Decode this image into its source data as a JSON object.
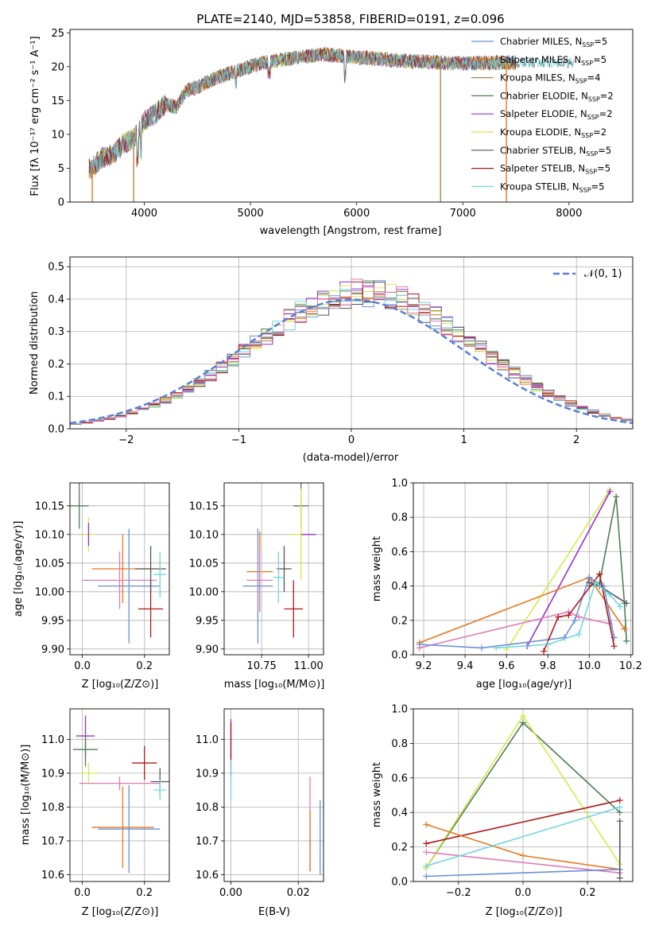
{
  "chart_data": [
    {
      "type": "line",
      "title": "PLATE=2140, MJD=53858, FIBERID=0191, z=0.096",
      "xlabel": "wavelength [Angstrom, rest frame]",
      "ylabel": "Flux [fλ 10⁻¹⁷ erg cm⁻² s⁻¹ A⁻¹]",
      "xlim": [
        3300,
        8600
      ],
      "ylim": [
        0,
        25.5
      ],
      "xticks": [
        "4000",
        "5000",
        "6000",
        "7000",
        "8000"
      ],
      "yticks": [
        "0",
        "5",
        "10",
        "15",
        "20",
        "25"
      ],
      "legend_placement": "right",
      "series": [
        {
          "name": "Chabrier MILES, N",
          "sub": "SSP",
          "suffix": "=5",
          "color": "#6a8fd8"
        },
        {
          "name": "Salpeter MILES, N",
          "sub": "SSP",
          "suffix": "=5",
          "color": "#e8761f"
        },
        {
          "name": "Kroupa MILES, N",
          "sub": "SSP",
          "suffix": "=4",
          "color": "#a8894a"
        },
        {
          "name": "Chabrier ELODIE, N",
          "sub": "SSP",
          "suffix": "=2",
          "color": "#4f7f55"
        },
        {
          "name": "Salpeter ELODIE, N",
          "sub": "SSP",
          "suffix": "=2",
          "color": "#9b30c8"
        },
        {
          "name": "Kroupa ELODIE, N",
          "sub": "SSP",
          "suffix": "=2",
          "color": "#d7e84a"
        },
        {
          "name": "Chabrier STELIB, N",
          "sub": "SSP",
          "suffix": "=5",
          "color": "#555555"
        },
        {
          "name": "Salpeter STELIB, N",
          "sub": "SSP",
          "suffix": "=5",
          "color": "#b01818"
        },
        {
          "name": "Kroupa STELIB, N",
          "sub": "SSP",
          "suffix": "=5",
          "color": "#6fd6e0"
        }
      ],
      "continuum": {
        "x": [
          3500,
          3600,
          3700,
          3800,
          3900,
          4000,
          4100,
          4200,
          4300,
          4400,
          4500,
          4700,
          4900,
          5100,
          5300,
          5500,
          5700,
          5900,
          6100,
          6300,
          6500,
          6700,
          6900,
          7100,
          7300,
          7500
        ],
        "y": [
          5,
          6.5,
          7,
          8.5,
          9.5,
          12,
          13,
          14.5,
          14,
          16.5,
          17,
          18.5,
          19.5,
          20.5,
          21,
          21.5,
          21.8,
          21.5,
          21.3,
          21,
          20.8,
          20.7,
          20.5,
          20.5,
          20.6,
          20.6
        ]
      },
      "spikes": [
        {
          "x": 3510,
          "color": "#e8761f"
        },
        {
          "x": 3900,
          "color": "#a8894a"
        },
        {
          "x": 6790,
          "color": "#a8894a"
        },
        {
          "x": 7410,
          "color": "#e8761f"
        }
      ]
    },
    {
      "type": "histogram",
      "xlabel": "(data-model)/error",
      "ylabel": "Normed distribution",
      "xlim": [
        -2.5,
        2.5
      ],
      "ylim": [
        0,
        0.53
      ],
      "xticks": [
        "−2",
        "−1",
        "0",
        "1",
        "2"
      ],
      "yticks": [
        "0.0",
        "0.1",
        "0.2",
        "0.3",
        "0.4",
        "0.5"
      ],
      "legend": "𝒩(0, 1)",
      "legend_placement": "top-right",
      "gaussian": {
        "mean": 0,
        "sd": 1,
        "color": "#5b7fd6"
      },
      "bin_width": 0.1,
      "series_colors": [
        "#6a8fd8",
        "#e8761f",
        "#a8894a",
        "#4f7f55",
        "#9b30c8",
        "#d7e84a",
        "#555555",
        "#b01818",
        "#6fd6e0",
        "#e07ab8"
      ]
    },
    {
      "type": "scatter",
      "xlabel": "Z [log₁₀(Z/Z⊙)]",
      "ylabel": "age  [log₁₀(age/yr)]",
      "xlim": [
        -0.04,
        0.28
      ],
      "ylim": [
        9.89,
        10.19
      ],
      "xticks": [
        "0.0",
        "0.2"
      ],
      "yticks": [
        "9.90",
        "9.95",
        "10.00",
        "10.05",
        "10.10",
        "10.15"
      ],
      "points": [
        {
          "x": -0.01,
          "y": 10.15,
          "xe": 0.03,
          "ye": 0.04,
          "color": "#4f7f55"
        },
        {
          "x": 0.02,
          "y": 10.1,
          "xe": 0.02,
          "ye": 0.03,
          "color": "#d7e84a"
        },
        {
          "x": 0.02,
          "y": 10.1,
          "xe": 0.0,
          "ye": 0.02,
          "color": "#9b30c8"
        },
        {
          "x": 0.13,
          "y": 10.04,
          "xe": 0.1,
          "ye": 0.06,
          "color": "#e8761f"
        },
        {
          "x": 0.12,
          "y": 10.02,
          "xe": 0.12,
          "ye": 0.05,
          "color": "#e07ab8"
        },
        {
          "x": 0.15,
          "y": 10.01,
          "xe": 0.1,
          "ye": 0.1,
          "color": "#6a8fd8"
        },
        {
          "x": 0.22,
          "y": 9.97,
          "xe": 0.04,
          "ye": 0.05,
          "color": "#b01818"
        },
        {
          "x": 0.22,
          "y": 10.04,
          "xe": 0.05,
          "ye": 0.04,
          "color": "#555555"
        },
        {
          "x": 0.25,
          "y": 10.03,
          "xe": 0.02,
          "ye": 0.04,
          "color": "#6fd6e0"
        }
      ]
    },
    {
      "type": "scatter",
      "xlabel": "mass [log₁₀(M/M⊙)]",
      "ylabel": "",
      "xlim": [
        10.55,
        11.08
      ],
      "ylim": [
        9.89,
        10.19
      ],
      "xticks": [
        "10.75",
        "11.00"
      ],
      "yticks": [
        "9.90",
        "9.95",
        "10.00",
        "10.05",
        "10.10",
        "10.15"
      ],
      "points": [
        {
          "x": 10.96,
          "y": 10.15,
          "xe": 0.04,
          "ye": 0.04,
          "color": "#4f7f55"
        },
        {
          "x": 10.96,
          "y": 10.1,
          "xe": 0.06,
          "ye": 0.08,
          "color": "#d7e84a"
        },
        {
          "x": 11.0,
          "y": 10.1,
          "xe": 0.04,
          "ye": 0.0,
          "color": "#9b30c8"
        },
        {
          "x": 10.74,
          "y": 10.035,
          "xe": 0.07,
          "ye": 0.07,
          "color": "#e8761f"
        },
        {
          "x": 10.74,
          "y": 10.02,
          "xe": 0.07,
          "ye": 0.05,
          "color": "#e07ab8"
        },
        {
          "x": 10.73,
          "y": 10.01,
          "xe": 0.08,
          "ye": 0.1,
          "color": "#6a8fd8"
        },
        {
          "x": 10.92,
          "y": 9.97,
          "xe": 0.05,
          "ye": 0.05,
          "color": "#b01818"
        },
        {
          "x": 10.87,
          "y": 10.04,
          "xe": 0.04,
          "ye": 0.04,
          "color": "#555555"
        },
        {
          "x": 10.84,
          "y": 10.025,
          "xe": 0.03,
          "ye": 0.045,
          "color": "#6fd6e0"
        }
      ]
    },
    {
      "type": "line",
      "xlabel": "age  [log₁₀(age/yr)]",
      "ylabel": "mass weight",
      "xlim": [
        9.15,
        10.21
      ],
      "ylim": [
        0,
        1.0
      ],
      "xticks": [
        "9.2",
        "9.4",
        "9.6",
        "9.8",
        "10.0",
        "10.2"
      ],
      "yticks": [
        "0.0",
        "0.2",
        "0.4",
        "0.6",
        "0.8",
        "1.0"
      ],
      "series": [
        {
          "color": "#d7e84a",
          "x": [
            9.6,
            10.1
          ],
          "y": [
            0.03,
            0.96
          ]
        },
        {
          "color": "#9b30c8",
          "x": [
            9.7,
            10.1
          ],
          "y": [
            0.05,
            0.95
          ]
        },
        {
          "color": "#4f7f55",
          "x": [
            10.0,
            10.05,
            10.13,
            10.17,
            10.18
          ],
          "y": [
            0.4,
            0.42,
            0.92,
            0.3,
            0.08
          ]
        },
        {
          "color": "#e8761f",
          "x": [
            9.18,
            10.0,
            10.17
          ],
          "y": [
            0.07,
            0.45,
            0.15
          ]
        },
        {
          "color": "#e07ab8",
          "x": [
            9.18,
            9.9,
            9.95,
            10.1
          ],
          "y": [
            0.04,
            0.25,
            0.22,
            0.18
          ]
        },
        {
          "color": "#6a8fd8",
          "x": [
            9.18,
            9.48,
            9.88,
            9.93,
            10.0,
            10.07,
            10.12
          ],
          "y": [
            0.06,
            0.04,
            0.1,
            0.2,
            0.45,
            0.4,
            0.1
          ]
        },
        {
          "color": "#b01818",
          "x": [
            9.78,
            9.85,
            9.9,
            10.05,
            10.12
          ],
          "y": [
            0.02,
            0.22,
            0.23,
            0.47,
            0.05
          ]
        },
        {
          "color": "#555555",
          "x": [
            10.0,
            10.05,
            10.18
          ],
          "y": [
            0.42,
            0.4,
            0.3
          ]
        },
        {
          "color": "#6fd6e0",
          "x": [
            9.55,
            9.8,
            9.95,
            10.03,
            10.1,
            10.15
          ],
          "y": [
            0.04,
            0.06,
            0.12,
            0.42,
            0.35,
            0.28
          ]
        }
      ]
    },
    {
      "type": "scatter",
      "xlabel": "Z [log₁₀(Z/Z⊙)]",
      "ylabel": "mass [log₁₀(M/M⊙)]",
      "xlim": [
        -0.04,
        0.28
      ],
      "ylim": [
        10.58,
        11.09
      ],
      "xticks": [
        "0.0",
        "0.2"
      ],
      "yticks": [
        "10.6",
        "10.7",
        "10.8",
        "10.9",
        "11.0"
      ],
      "points": [
        {
          "x": 0.01,
          "y": 11.01,
          "xe": 0.03,
          "ye": 0.06,
          "color": "#9b30c8"
        },
        {
          "x": 0.01,
          "y": 10.97,
          "xe": 0.04,
          "ye": 0.05,
          "color": "#4f7f55"
        },
        {
          "x": 0.02,
          "y": 10.9,
          "xe": 0.03,
          "ye": 0.03,
          "color": "#d7e84a"
        },
        {
          "x": 0.12,
          "y": 10.87,
          "xe": 0.13,
          "ye": 0.02,
          "color": "#e07ab8"
        },
        {
          "x": 0.13,
          "y": 10.74,
          "xe": 0.1,
          "ye": 0.12,
          "color": "#e8761f"
        },
        {
          "x": 0.15,
          "y": 10.735,
          "xe": 0.1,
          "ye": 0.13,
          "color": "#6a8fd8"
        },
        {
          "x": 0.2,
          "y": 10.93,
          "xe": 0.04,
          "ye": 0.05,
          "color": "#b01818"
        },
        {
          "x": 0.25,
          "y": 10.875,
          "xe": 0.03,
          "ye": 0.04,
          "color": "#555555"
        },
        {
          "x": 0.25,
          "y": 10.85,
          "xe": 0.02,
          "ye": 0.03,
          "color": "#6fd6e0"
        }
      ]
    },
    {
      "type": "scatter",
      "xlabel": "E(B-V)",
      "ylabel": "",
      "xlim": [
        -0.002,
        0.0275
      ],
      "ylim": [
        10.58,
        11.09
      ],
      "xticks": [
        "0.00",
        "0.02"
      ],
      "yticks": [
        "10.6",
        "10.7",
        "10.8",
        "10.9",
        "11.0"
      ],
      "points": [
        {
          "x": 0.0,
          "y": 11.0,
          "xe": 0,
          "ye": 0.06,
          "color": "#9b30c8"
        },
        {
          "x": 0.0,
          "y": 10.97,
          "xe": 0,
          "ye": 0.08,
          "color": "#b01818"
        },
        {
          "x": 0.0,
          "y": 10.88,
          "xe": 0,
          "ye": 0.06,
          "color": "#6fd6e0"
        },
        {
          "x": 0.0235,
          "y": 10.75,
          "xe": 0,
          "ye": 0.14,
          "color": "#e07ab8"
        },
        {
          "x": 0.0235,
          "y": 10.7,
          "xe": 0,
          "ye": 0.09,
          "color": "#e8761f"
        },
        {
          "x": 0.0265,
          "y": 10.71,
          "xe": 0,
          "ye": 0.11,
          "color": "#6a8fd8"
        }
      ]
    },
    {
      "type": "line",
      "xlabel": "Z [log₁₀(Z/Z⊙)]",
      "ylabel": "mass weight",
      "xlim": [
        -0.34,
        0.34
      ],
      "ylim": [
        0,
        1.0
      ],
      "xticks": [
        "−0.2",
        "0.0",
        "0.2"
      ],
      "yticks": [
        "0.0",
        "0.2",
        "0.4",
        "0.6",
        "0.8",
        "1.0"
      ],
      "series": [
        {
          "color": "#4f7f55",
          "x": [
            -0.3,
            0.0,
            0.3
          ],
          "y": [
            0.08,
            0.92,
            0.4
          ]
        },
        {
          "color": "#d7e84a",
          "x": [
            -0.3,
            0.0,
            0.3
          ],
          "y": [
            0.08,
            0.96,
            0.1
          ]
        },
        {
          "color": "#b01818",
          "x": [
            -0.3,
            0.3
          ],
          "y": [
            0.22,
            0.47
          ]
        },
        {
          "color": "#e8761f",
          "x": [
            -0.3,
            0.0,
            0.3
          ],
          "y": [
            0.33,
            0.15,
            0.07
          ]
        },
        {
          "color": "#e07ab8",
          "x": [
            -0.3,
            0.3
          ],
          "y": [
            0.17,
            0.05
          ]
        },
        {
          "color": "#6a8fd8",
          "x": [
            -0.3,
            0.3
          ],
          "y": [
            0.03,
            0.07
          ]
        },
        {
          "color": "#6fd6e0",
          "x": [
            -0.3,
            0.3
          ],
          "y": [
            0.09,
            0.43
          ]
        },
        {
          "color": "#555555",
          "x": [
            0.3,
            0.3
          ],
          "y": [
            0.02,
            0.35
          ]
        }
      ]
    }
  ]
}
